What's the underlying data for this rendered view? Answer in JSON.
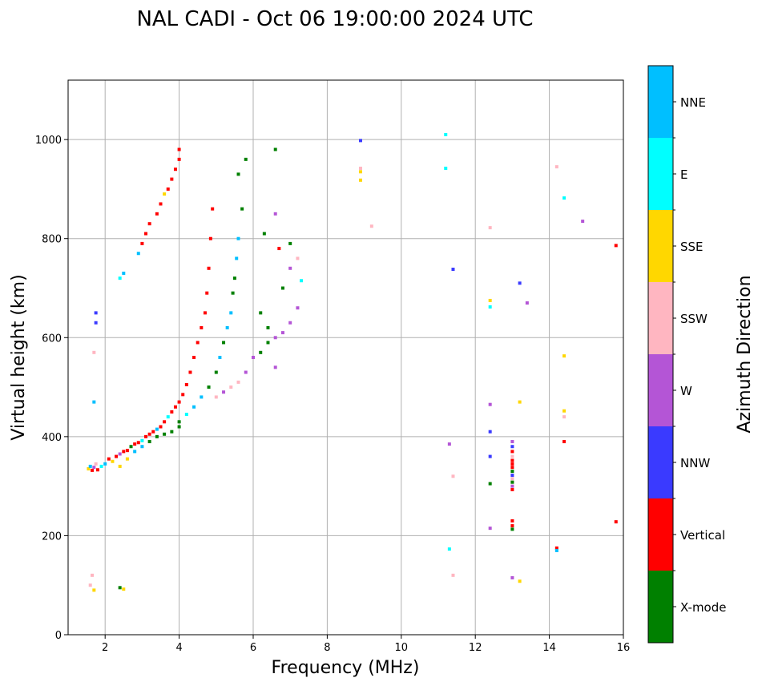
{
  "chart_data": {
    "type": "scatter",
    "title": "NAL CADI - Oct 06 19:00:00 2024 UTC",
    "xlabel": "Frequency (MHz)",
    "ylabel": "Virtual height (km)",
    "xlim": [
      1,
      16
    ],
    "ylim": [
      0,
      1120
    ],
    "xticks": [
      2,
      4,
      6,
      8,
      10,
      12,
      14,
      16
    ],
    "yticks": [
      0,
      200,
      400,
      600,
      800,
      1000
    ],
    "grid": true,
    "colorbar": {
      "label": "Azimuth Direction",
      "categories": [
        {
          "name": "X-mode",
          "color": "#008000"
        },
        {
          "name": "Vertical",
          "color": "#ff0000"
        },
        {
          "name": "NNW",
          "color": "#3a3aff"
        },
        {
          "name": "W",
          "color": "#b455d6"
        },
        {
          "name": "SSW",
          "color": "#ffb6c1"
        },
        {
          "name": "SSE",
          "color": "#ffd700"
        },
        {
          "name": "E",
          "color": "#00ffff"
        },
        {
          "name": "NNE",
          "color": "#00bfff"
        }
      ]
    },
    "points": [
      [
        1.55,
        335,
        "SSE"
      ],
      [
        1.6,
        340,
        "NNE"
      ],
      [
        1.65,
        332,
        "Vertical"
      ],
      [
        1.7,
        338,
        "W"
      ],
      [
        1.75,
        345,
        "SSW"
      ],
      [
        1.8,
        333,
        "Vertical"
      ],
      [
        1.9,
        340,
        "E"
      ],
      [
        2.0,
        345,
        "NNE"
      ],
      [
        2.1,
        355,
        "Vertical"
      ],
      [
        2.2,
        350,
        "SSE"
      ],
      [
        2.3,
        360,
        "Vertical"
      ],
      [
        2.4,
        365,
        "W"
      ],
      [
        2.5,
        370,
        "Vertical"
      ],
      [
        2.6,
        372,
        "Vertical"
      ],
      [
        2.7,
        380,
        "X-mode"
      ],
      [
        2.8,
        385,
        "Vertical"
      ],
      [
        2.9,
        388,
        "Vertical"
      ],
      [
        3.0,
        392,
        "E"
      ],
      [
        3.1,
        400,
        "Vertical"
      ],
      [
        3.2,
        405,
        "Vertical"
      ],
      [
        3.3,
        410,
        "Vertical"
      ],
      [
        3.4,
        415,
        "NNE"
      ],
      [
        3.5,
        420,
        "Vertical"
      ],
      [
        3.6,
        430,
        "Vertical"
      ],
      [
        3.7,
        440,
        "E"
      ],
      [
        3.8,
        450,
        "Vertical"
      ],
      [
        3.9,
        460,
        "Vertical"
      ],
      [
        4.0,
        470,
        "Vertical"
      ],
      [
        4.1,
        485,
        "Vertical"
      ],
      [
        4.2,
        505,
        "Vertical"
      ],
      [
        4.3,
        530,
        "Vertical"
      ],
      [
        4.4,
        560,
        "Vertical"
      ],
      [
        4.5,
        590,
        "Vertical"
      ],
      [
        4.6,
        620,
        "Vertical"
      ],
      [
        4.7,
        650,
        "Vertical"
      ],
      [
        4.75,
        690,
        "Vertical"
      ],
      [
        4.8,
        740,
        "Vertical"
      ],
      [
        4.85,
        800,
        "Vertical"
      ],
      [
        4.9,
        860,
        "Vertical"
      ],
      [
        2.4,
        340,
        "SSE"
      ],
      [
        2.6,
        355,
        "SSE"
      ],
      [
        2.8,
        370,
        "NNE"
      ],
      [
        3.0,
        380,
        "NNE"
      ],
      [
        3.2,
        390,
        "X-mode"
      ],
      [
        3.4,
        400,
        "X-mode"
      ],
      [
        3.6,
        405,
        "X-mode"
      ],
      [
        3.8,
        410,
        "X-mode"
      ],
      [
        4.0,
        420,
        "X-mode"
      ],
      [
        4.0,
        430,
        "X-mode"
      ],
      [
        4.2,
        445,
        "E"
      ],
      [
        4.4,
        460,
        "NNE"
      ],
      [
        4.6,
        480,
        "NNE"
      ],
      [
        4.8,
        500,
        "X-mode"
      ],
      [
        5.0,
        530,
        "X-mode"
      ],
      [
        5.1,
        560,
        "NNE"
      ],
      [
        5.2,
        590,
        "X-mode"
      ],
      [
        5.3,
        620,
        "NNE"
      ],
      [
        5.4,
        650,
        "NNE"
      ],
      [
        5.45,
        690,
        "X-mode"
      ],
      [
        5.5,
        720,
        "X-mode"
      ],
      [
        5.55,
        760,
        "NNE"
      ],
      [
        5.6,
        800,
        "NNE"
      ],
      [
        5.7,
        860,
        "X-mode"
      ],
      [
        5.6,
        930,
        "X-mode"
      ],
      [
        5.8,
        960,
        "X-mode"
      ],
      [
        5.0,
        480,
        "SSW"
      ],
      [
        5.2,
        490,
        "W"
      ],
      [
        5.4,
        500,
        "SSW"
      ],
      [
        5.6,
        510,
        "SSW"
      ],
      [
        5.8,
        530,
        "W"
      ],
      [
        6.0,
        560,
        "W"
      ],
      [
        6.2,
        570,
        "X-mode"
      ],
      [
        6.4,
        590,
        "X-mode"
      ],
      [
        6.6,
        600,
        "W"
      ],
      [
        6.8,
        610,
        "W"
      ],
      [
        7.0,
        630,
        "W"
      ],
      [
        7.2,
        660,
        "W"
      ],
      [
        6.6,
        540,
        "W"
      ],
      [
        6.4,
        620,
        "X-mode"
      ],
      [
        6.2,
        650,
        "X-mode"
      ],
      [
        6.8,
        700,
        "X-mode"
      ],
      [
        7.0,
        740,
        "W"
      ],
      [
        7.2,
        760,
        "SSW"
      ],
      [
        6.7,
        780,
        "Vertical"
      ],
      [
        6.3,
        810,
        "X-mode"
      ],
      [
        6.6,
        850,
        "W"
      ],
      [
        6.6,
        980,
        "X-mode"
      ],
      [
        7.3,
        715,
        "E"
      ],
      [
        7.0,
        790,
        "X-mode"
      ],
      [
        2.9,
        770,
        "NNE"
      ],
      [
        3.0,
        790,
        "Vertical"
      ],
      [
        3.1,
        810,
        "Vertical"
      ],
      [
        3.2,
        830,
        "Vertical"
      ],
      [
        3.4,
        850,
        "Vertical"
      ],
      [
        3.5,
        870,
        "Vertical"
      ],
      [
        3.6,
        890,
        "SSE"
      ],
      [
        3.7,
        900,
        "Vertical"
      ],
      [
        3.8,
        920,
        "Vertical"
      ],
      [
        3.9,
        940,
        "Vertical"
      ],
      [
        4.0,
        960,
        "Vertical"
      ],
      [
        4.0,
        980,
        "Vertical"
      ],
      [
        2.4,
        720,
        "E"
      ],
      [
        2.5,
        730,
        "NNE"
      ],
      [
        1.6,
        100,
        "SSW"
      ],
      [
        1.7,
        90,
        "SSE"
      ],
      [
        2.4,
        95,
        "X-mode"
      ],
      [
        2.5,
        92,
        "SSE"
      ],
      [
        1.65,
        120,
        "SSW"
      ],
      [
        1.75,
        630,
        "NNW"
      ],
      [
        1.75,
        650,
        "NNW"
      ],
      [
        1.7,
        570,
        "SSW"
      ],
      [
        1.7,
        470,
        "NNE"
      ],
      [
        8.9,
        998,
        "NNW"
      ],
      [
        8.9,
        942,
        "SSW"
      ],
      [
        8.9,
        935,
        "SSE"
      ],
      [
        8.9,
        918,
        "SSE"
      ],
      [
        9.2,
        825,
        "SSW"
      ],
      [
        11.2,
        1010,
        "E"
      ],
      [
        11.2,
        942,
        "E"
      ],
      [
        11.4,
        738,
        "NNW"
      ],
      [
        11.3,
        385,
        "W"
      ],
      [
        11.4,
        320,
        "SSW"
      ],
      [
        11.3,
        173,
        "E"
      ],
      [
        11.4,
        120,
        "SSW"
      ],
      [
        12.4,
        822,
        "SSW"
      ],
      [
        12.4,
        675,
        "SSE"
      ],
      [
        12.4,
        662,
        "E"
      ],
      [
        12.4,
        465,
        "W"
      ],
      [
        12.4,
        410,
        "NNW"
      ],
      [
        12.4,
        360,
        "NNW"
      ],
      [
        12.4,
        305,
        "X-mode"
      ],
      [
        12.4,
        215,
        "W"
      ],
      [
        13.0,
        390,
        "W"
      ],
      [
        13.0,
        380,
        "NNW"
      ],
      [
        13.0,
        370,
        "Vertical"
      ],
      [
        13.0,
        360,
        "SSW"
      ],
      [
        13.0,
        352,
        "Vertical"
      ],
      [
        13.0,
        345,
        "Vertical"
      ],
      [
        13.0,
        338,
        "Vertical"
      ],
      [
        13.0,
        330,
        "X-mode"
      ],
      [
        13.0,
        322,
        "NNW"
      ],
      [
        13.0,
        315,
        "SSW"
      ],
      [
        13.0,
        308,
        "X-mode"
      ],
      [
        13.0,
        300,
        "W"
      ],
      [
        13.0,
        293,
        "Vertical"
      ],
      [
        13.0,
        230,
        "Vertical"
      ],
      [
        13.0,
        220,
        "Vertical"
      ],
      [
        13.0,
        213,
        "X-mode"
      ],
      [
        13.0,
        115,
        "W"
      ],
      [
        13.2,
        108,
        "SSE"
      ],
      [
        13.2,
        710,
        "NNW"
      ],
      [
        13.4,
        670,
        "W"
      ],
      [
        13.2,
        470,
        "SSE"
      ],
      [
        14.2,
        945,
        "SSW"
      ],
      [
        14.4,
        882,
        "E"
      ],
      [
        14.9,
        835,
        "W"
      ],
      [
        14.4,
        563,
        "SSE"
      ],
      [
        14.4,
        452,
        "SSE"
      ],
      [
        14.4,
        440,
        "SSW"
      ],
      [
        14.4,
        390,
        "Vertical"
      ],
      [
        14.2,
        175,
        "Vertical"
      ],
      [
        14.2,
        170,
        "NNE"
      ],
      [
        15.8,
        786,
        "Vertical"
      ],
      [
        15.8,
        228,
        "Vertical"
      ]
    ]
  }
}
